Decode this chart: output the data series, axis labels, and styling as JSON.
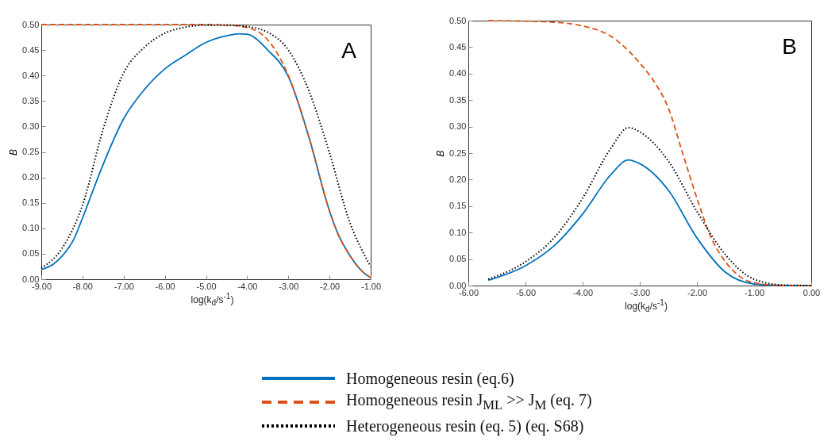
{
  "chart_data": [
    {
      "type": "line",
      "xlabel": "log(k$_{d}$/s$^{-1}$)",
      "ylabel": "B",
      "annotations": [
        "A"
      ],
      "grid": false,
      "legend": "bottom",
      "xlim": [
        -9,
        -1
      ],
      "xticks": [
        {
          "value": -9,
          "label": "-9.00"
        },
        {
          "value": -8,
          "label": "-8.00"
        },
        {
          "value": -7,
          "label": "-7.00"
        },
        {
          "value": -6,
          "label": "-6.00"
        },
        {
          "value": -5,
          "label": "-5.00"
        },
        {
          "value": -4,
          "label": "-4.00"
        },
        {
          "value": -3,
          "label": "-3.00"
        },
        {
          "value": -2,
          "label": "-2.00"
        },
        {
          "value": -1,
          "label": "-1.00"
        }
      ],
      "ylim": [
        0,
        0.5
      ],
      "yticks": [
        {
          "value": 0,
          "label": "0.00"
        },
        {
          "value": 0.05,
          "label": "0.05"
        },
        {
          "value": 0.1,
          "label": "0.10"
        },
        {
          "value": 0.15,
          "label": "0.15"
        },
        {
          "value": 0.2,
          "label": "0.20"
        },
        {
          "value": 0.25,
          "label": "0.25"
        },
        {
          "value": 0.3,
          "label": "0.30"
        },
        {
          "value": 0.35,
          "label": "0.35"
        },
        {
          "value": 0.4,
          "label": "0.40"
        },
        {
          "value": 0.45,
          "label": "0.45"
        },
        {
          "value": 0.5,
          "label": "0.50"
        }
      ],
      "series": [
        {
          "name": "Homogeneous resin (eq.6)",
          "color": "#0072bd",
          "line_style": "solid",
          "x": [
            -9,
            -8.7,
            -8.5,
            -8.2,
            -8,
            -7.5,
            -7,
            -6.5,
            -6,
            -5.5,
            -5,
            -4.5,
            -4.2,
            -4,
            -3.5,
            -3,
            -2.5,
            -2,
            -1.8,
            -1.5,
            -1.2,
            -1
          ],
          "values": [
            0.019,
            0.03,
            0.045,
            0.08,
            0.12,
            0.225,
            0.315,
            0.372,
            0.413,
            0.44,
            0.465,
            0.478,
            0.482,
            0.481,
            0.45,
            0.398,
            0.279,
            0.134,
            0.09,
            0.046,
            0.015,
            0.003
          ]
        },
        {
          "name": "Homogeneous resin J$_{ML}$ >> J$_{M}$ (eq. 7)",
          "color": "#d95319",
          "line_style": "dashed",
          "x": [
            -9,
            -8,
            -7,
            -6,
            -5,
            -4.5,
            -4,
            -3.5,
            -3,
            -2.5,
            -2,
            -1.8,
            -1.5,
            -1.2,
            -1
          ],
          "values": [
            0.5,
            0.5,
            0.5,
            0.5,
            0.5,
            0.499,
            0.494,
            0.47,
            0.4,
            0.279,
            0.134,
            0.09,
            0.046,
            0.015,
            0.003
          ]
        },
        {
          "name": "Heterogeneous resin (eq. 5) (eq. S68)",
          "color": "#000000",
          "line_style": "dotted",
          "x": [
            -9,
            -8.5,
            -8,
            -7.5,
            -7,
            -6.5,
            -6,
            -5.5,
            -5,
            -4.5,
            -4,
            -3.5,
            -3,
            -2.5,
            -2,
            -1.5,
            -1.2,
            -1
          ],
          "values": [
            0.022,
            0.06,
            0.145,
            0.294,
            0.405,
            0.455,
            0.483,
            0.495,
            0.499,
            0.499,
            0.496,
            0.485,
            0.45,
            0.37,
            0.248,
            0.11,
            0.055,
            0.025
          ]
        }
      ]
    },
    {
      "type": "line",
      "xlabel": "log(k$_{d}$/s$^{-1}$)",
      "ylabel": "B",
      "annotations": [
        "B"
      ],
      "grid": false,
      "xlim": [
        -6,
        0
      ],
      "xticks": [
        {
          "value": -6,
          "label": "-6.00"
        },
        {
          "value": -5,
          "label": "-5.00"
        },
        {
          "value": -4,
          "label": "-4.00"
        },
        {
          "value": -3,
          "label": "-3.00"
        },
        {
          "value": -2,
          "label": "-2.00"
        },
        {
          "value": -1,
          "label": "-1.00"
        },
        {
          "value": 0,
          "label": "0.00"
        }
      ],
      "ylim": [
        0,
        0.5
      ],
      "yticks": [
        {
          "value": 0,
          "label": "0.00"
        },
        {
          "value": 0.05,
          "label": "0.05"
        },
        {
          "value": 0.1,
          "label": "0.10"
        },
        {
          "value": 0.15,
          "label": "0.15"
        },
        {
          "value": 0.2,
          "label": "0.20"
        },
        {
          "value": 0.25,
          "label": "0.25"
        },
        {
          "value": 0.3,
          "label": "0.30"
        },
        {
          "value": 0.35,
          "label": "0.35"
        },
        {
          "value": 0.4,
          "label": "0.40"
        },
        {
          "value": 0.45,
          "label": "0.45"
        },
        {
          "value": 0.5,
          "label": "0.50"
        }
      ],
      "series": [
        {
          "name": "Homogeneous resin (eq.6)",
          "color": "#0072bd",
          "line_style": "solid",
          "x": [
            -5.65,
            -5,
            -4.5,
            -4,
            -3.5,
            -3.2,
            -3,
            -2.5,
            -2,
            -1.5,
            -1,
            -0.5,
            0
          ],
          "values": [
            0.01,
            0.0375,
            0.075,
            0.135,
            0.21,
            0.237,
            0.23,
            0.18,
            0.09,
            0.025,
            0.003,
            0,
            0
          ]
        },
        {
          "name": "Homogeneous resin J$_{ML}$ >> J$_{M}$ (eq. 7)",
          "color": "#d95319",
          "line_style": "dashed",
          "x": [
            -5.65,
            -5,
            -4.5,
            -4,
            -3.5,
            -3,
            -2.75,
            -2.5,
            -2.25,
            -2,
            -1.75,
            -1.5,
            -1.25,
            -1,
            -0.5,
            0
          ],
          "values": [
            0.5,
            0.499,
            0.497,
            0.49,
            0.47,
            0.42,
            0.385,
            0.335,
            0.25,
            0.165,
            0.09,
            0.045,
            0.017,
            0.005,
            0,
            0
          ]
        },
        {
          "name": "Heterogeneous resin (eq. 5) (eq. S68)",
          "color": "#000000",
          "line_style": "dotted",
          "x": [
            -5.65,
            -5,
            -4.5,
            -4,
            -3.5,
            -3.2,
            -3,
            -2.5,
            -2,
            -1.5,
            -1,
            -0.5,
            0
          ],
          "values": [
            0.012,
            0.045,
            0.09,
            0.165,
            0.26,
            0.298,
            0.29,
            0.235,
            0.14,
            0.058,
            0.012,
            0.001,
            0
          ]
        }
      ]
    }
  ]
}
